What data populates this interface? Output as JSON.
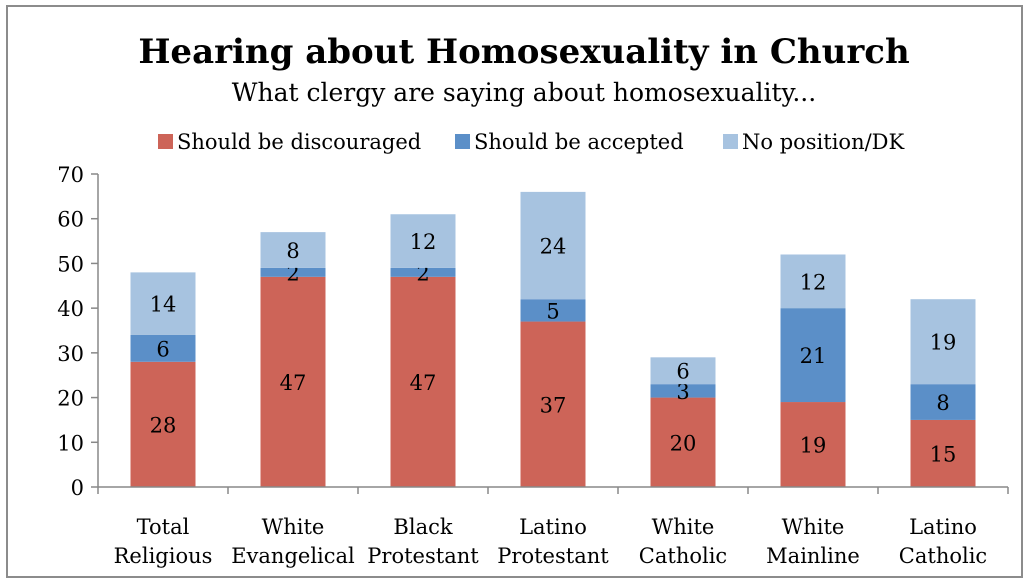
{
  "chart_data": {
    "type": "bar",
    "stacked": true,
    "title": "Hearing about Homosexuality in Church",
    "subtitle": "What clergy are saying about homosexuality...",
    "categories": [
      [
        "Total",
        "Religious"
      ],
      [
        "White",
        "Evangelical"
      ],
      [
        "Black",
        "Protestant"
      ],
      [
        "Latino",
        "Protestant"
      ],
      [
        "White",
        "Catholic"
      ],
      [
        "White",
        "Mainline"
      ],
      [
        "Latino",
        "Catholic"
      ]
    ],
    "series": [
      {
        "name": "Should be discouraged",
        "color": "#c0504d",
        "fill": "#cd6458",
        "values": [
          28,
          47,
          47,
          37,
          20,
          19,
          15
        ]
      },
      {
        "name": "Should be accepted",
        "color": "#4f81bd",
        "fill": "#5b8fc8",
        "values": [
          6,
          2,
          2,
          5,
          3,
          21,
          8
        ]
      },
      {
        "name": "No position/DK",
        "color": "#9bbbd9",
        "fill": "#a7c3e0",
        "values": [
          14,
          8,
          12,
          24,
          6,
          12,
          19
        ]
      }
    ],
    "ylim": [
      0,
      70
    ],
    "yticks": [
      0,
      10,
      20,
      30,
      40,
      50,
      60,
      70
    ],
    "legend_position": "top",
    "grid": false
  }
}
